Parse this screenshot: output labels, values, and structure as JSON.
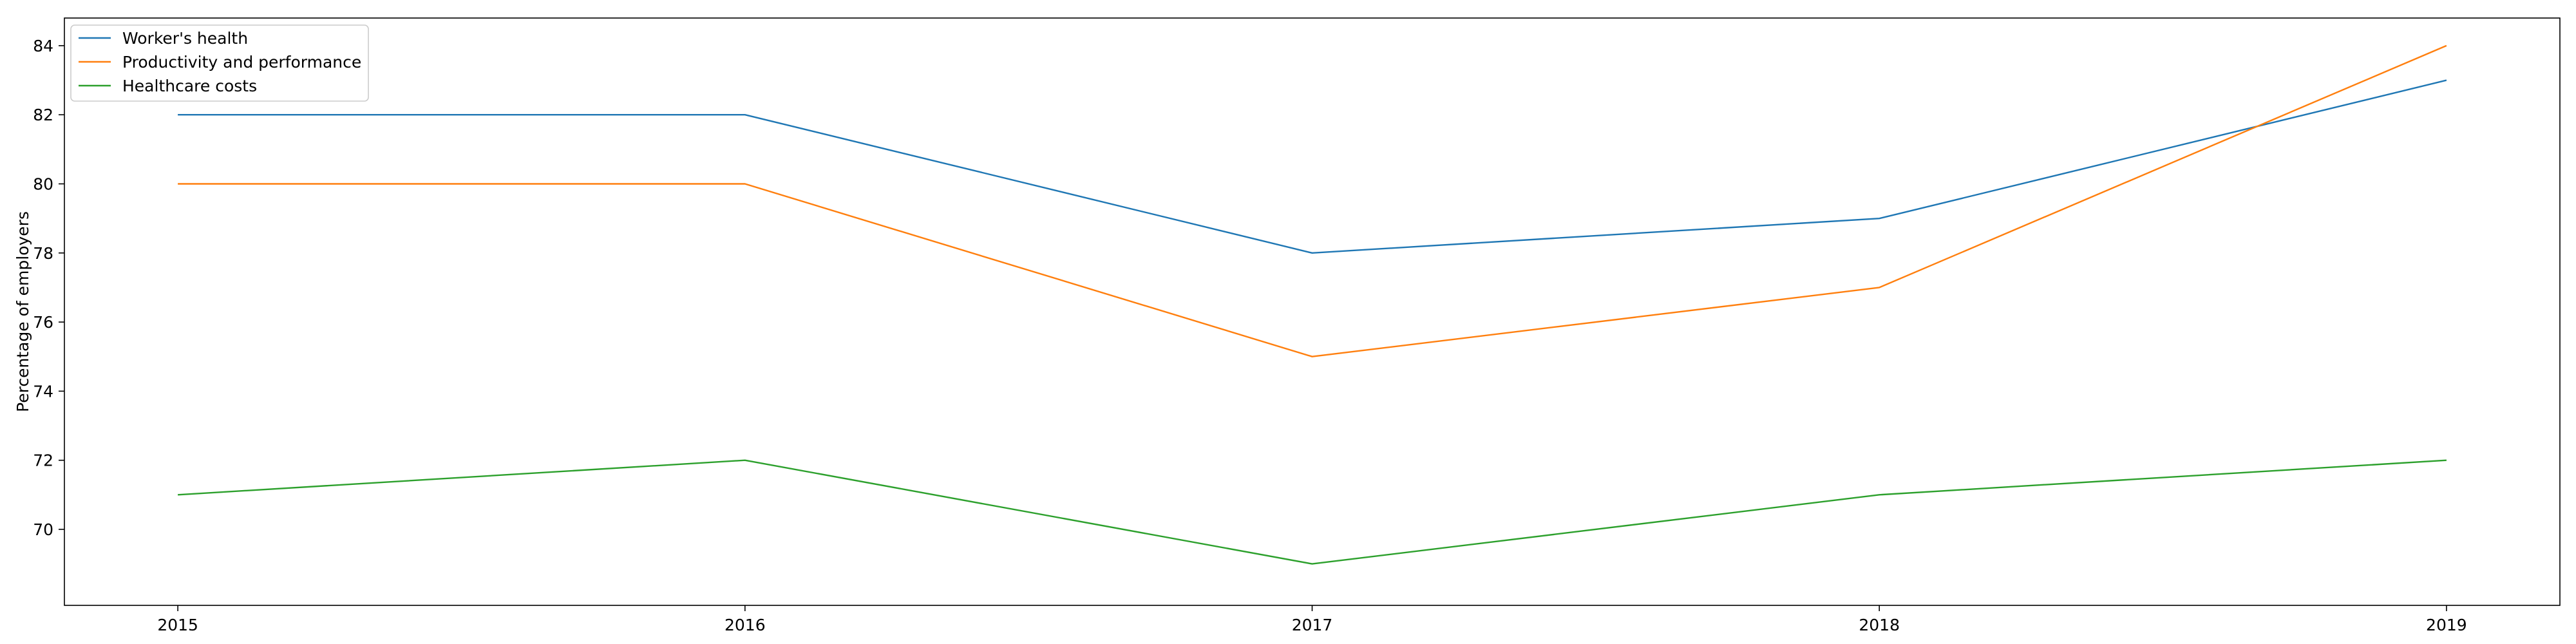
{
  "chart_data": {
    "type": "line",
    "title": "",
    "xlabel": "",
    "ylabel": "Percentage of employers",
    "x": [
      "2015",
      "2016",
      "2017",
      "2018",
      "2019"
    ],
    "xlim": [
      2014.8,
      2019.2
    ],
    "ylim": [
      67.8,
      84.8
    ],
    "yticks": [
      "70",
      "72",
      "74",
      "76",
      "78",
      "80",
      "82",
      "84"
    ],
    "grid": false,
    "legend_position": "top-left",
    "series": [
      {
        "name": "Worker's health",
        "color": "#1f77b4",
        "values": [
          82,
          82,
          78,
          79,
          83
        ]
      },
      {
        "name": "Productivity and performance",
        "color": "#ff7f0e",
        "values": [
          80,
          80,
          75,
          77,
          84
        ]
      },
      {
        "name": "Healthcare costs",
        "color": "#2ca02c",
        "values": [
          71,
          72,
          69,
          71,
          72
        ]
      }
    ]
  }
}
